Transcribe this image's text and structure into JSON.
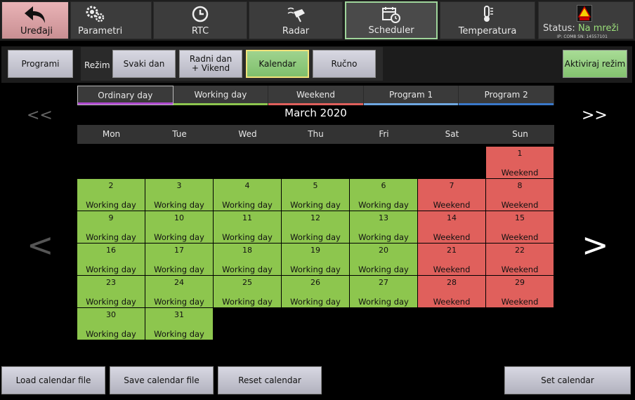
{
  "topnav": {
    "items": [
      {
        "label": "Uređaji",
        "icon": "back-arrow-icon"
      },
      {
        "label": "Parametri",
        "icon": "gears-icon"
      },
      {
        "label": "RTC",
        "icon": "clock-icon"
      },
      {
        "label": "Radar",
        "icon": "radar-icon"
      },
      {
        "label": "Scheduler",
        "icon": "calendar-clock-icon"
      },
      {
        "label": "Temperatura",
        "icon": "thermometer-icon"
      }
    ],
    "status": {
      "prefix": "Status: ",
      "value": "Na mreži",
      "ip": "IP: COM8 SN: 14557101"
    }
  },
  "modebar": {
    "programi": "Programi",
    "rezim": "Režim",
    "modes": [
      "Svaki dan",
      "Radni dan + Vikend",
      "Kalendar",
      "Ručno"
    ],
    "selected": "Kalendar",
    "activate": "Aktiviraj režim"
  },
  "legend": [
    {
      "label": "Ordinary day",
      "color": "#b04bd0"
    },
    {
      "label": "Working day",
      "color": "#8dc64e"
    },
    {
      "label": "Weekend",
      "color": "#e0605c"
    },
    {
      "label": "Program 1",
      "color": "#6ea7e0"
    },
    {
      "label": "Program 2",
      "color": "#3a78c8"
    }
  ],
  "calendar": {
    "month": "March 2020",
    "prev_year": "<<",
    "next_year": ">>",
    "prev_month": "<",
    "next_month": ">",
    "weekdays": [
      "Mon",
      "Tue",
      "Wed",
      "Thu",
      "Fri",
      "Sat",
      "Sun"
    ],
    "days": [
      {
        "day": "1",
        "type": "Weekend",
        "col": 6,
        "row": 0
      },
      {
        "day": "2",
        "type": "Working day",
        "col": 0,
        "row": 1
      },
      {
        "day": "3",
        "type": "Working day",
        "col": 1,
        "row": 1
      },
      {
        "day": "4",
        "type": "Working day",
        "col": 2,
        "row": 1
      },
      {
        "day": "5",
        "type": "Working day",
        "col": 3,
        "row": 1
      },
      {
        "day": "6",
        "type": "Working day",
        "col": 4,
        "row": 1
      },
      {
        "day": "7",
        "type": "Weekend",
        "col": 5,
        "row": 1
      },
      {
        "day": "8",
        "type": "Weekend",
        "col": 6,
        "row": 1
      },
      {
        "day": "9",
        "type": "Working day",
        "col": 0,
        "row": 2
      },
      {
        "day": "10",
        "type": "Working day",
        "col": 1,
        "row": 2
      },
      {
        "day": "11",
        "type": "Working day",
        "col": 2,
        "row": 2
      },
      {
        "day": "12",
        "type": "Working day",
        "col": 3,
        "row": 2
      },
      {
        "day": "13",
        "type": "Working day",
        "col": 4,
        "row": 2
      },
      {
        "day": "14",
        "type": "Weekend",
        "col": 5,
        "row": 2
      },
      {
        "day": "15",
        "type": "Weekend",
        "col": 6,
        "row": 2
      },
      {
        "day": "16",
        "type": "Working day",
        "col": 0,
        "row": 3
      },
      {
        "day": "17",
        "type": "Working day",
        "col": 1,
        "row": 3
      },
      {
        "day": "18",
        "type": "Working day",
        "col": 2,
        "row": 3
      },
      {
        "day": "19",
        "type": "Working day",
        "col": 3,
        "row": 3
      },
      {
        "day": "20",
        "type": "Working day",
        "col": 4,
        "row": 3
      },
      {
        "day": "21",
        "type": "Weekend",
        "col": 5,
        "row": 3
      },
      {
        "day": "22",
        "type": "Weekend",
        "col": 6,
        "row": 3
      },
      {
        "day": "23",
        "type": "Working day",
        "col": 0,
        "row": 4
      },
      {
        "day": "24",
        "type": "Working day",
        "col": 1,
        "row": 4
      },
      {
        "day": "25",
        "type": "Working day",
        "col": 2,
        "row": 4
      },
      {
        "day": "26",
        "type": "Working day",
        "col": 3,
        "row": 4
      },
      {
        "day": "27",
        "type": "Working day",
        "col": 4,
        "row": 4
      },
      {
        "day": "28",
        "type": "Weekend",
        "col": 5,
        "row": 4
      },
      {
        "day": "29",
        "type": "Weekend",
        "col": 6,
        "row": 4
      },
      {
        "day": "30",
        "type": "Working day",
        "col": 0,
        "row": 5
      },
      {
        "day": "31",
        "type": "Working day",
        "col": 1,
        "row": 5
      }
    ]
  },
  "bottom": {
    "load": "Load calendar file",
    "save": "Save calendar file",
    "reset": "Reset calendar",
    "set": "Set calendar"
  }
}
